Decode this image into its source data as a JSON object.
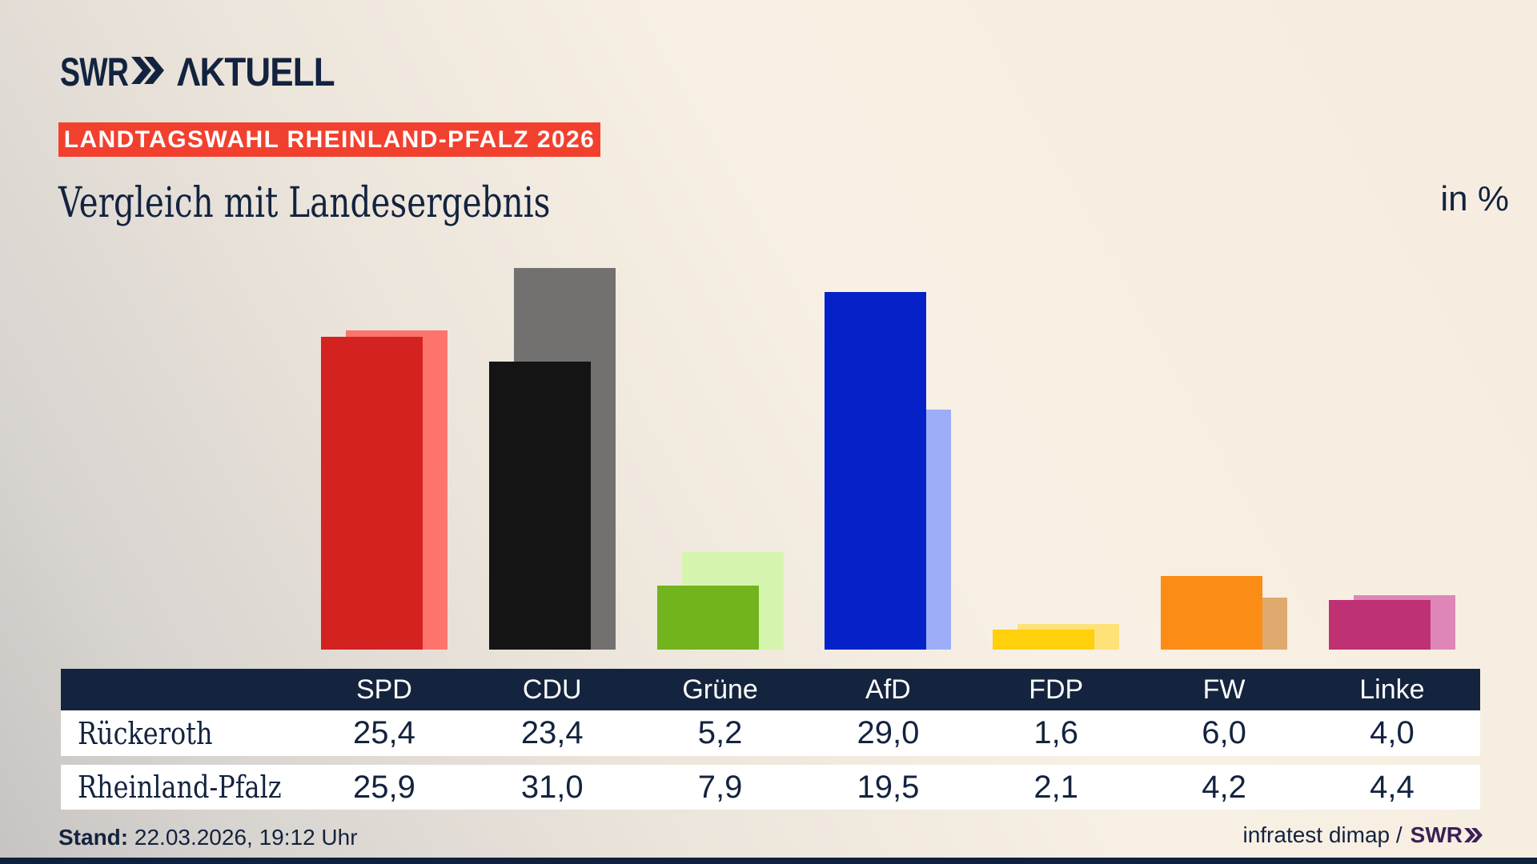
{
  "brand": {
    "logo_swr": "SWR",
    "logo_aktuell": "ΛKTUELL"
  },
  "badge": "LANDTAGSWAHL RHEINLAND-PFALZ 2026",
  "title": "Vergleich mit Landesergebnis",
  "unit_label": "in %",
  "chart_data": {
    "type": "bar",
    "categories": [
      "SPD",
      "CDU",
      "Grüne",
      "AfD",
      "FDP",
      "FW",
      "Linke"
    ],
    "series": [
      {
        "name": "Rückeroth",
        "values": [
          25.4,
          23.4,
          5.2,
          29.0,
          1.6,
          6.0,
          4.0
        ]
      },
      {
        "name": "Rheinland-Pfalz",
        "values": [
          25.9,
          31.0,
          7.9,
          19.5,
          2.1,
          4.2,
          4.4
        ]
      }
    ],
    "title": "Vergleich mit Landesergebnis",
    "unit": "in %",
    "ylim": [
      0,
      31.5
    ],
    "colors_front": [
      "#d42221",
      "#141414",
      "#72b41e",
      "#0522c8",
      "#ffd00c",
      "#fb8c16",
      "#be3173"
    ],
    "colors_back": [
      "#fc746c",
      "#737070",
      "#d5f5af",
      "#9dadf8",
      "#fee278",
      "#dfaa6d",
      "#de87b7"
    ],
    "legend": "front bar = Rückeroth, offset back bar = Rheinland-Pfalz"
  },
  "table": {
    "headers": [
      "SPD",
      "CDU",
      "Grüne",
      "AfD",
      "FDP",
      "FW",
      "Linke"
    ],
    "rows": [
      {
        "label": "Rückeroth",
        "values": [
          "25,4",
          "23,4",
          "5,2",
          "29,0",
          "1,6",
          "6,0",
          "4,0"
        ]
      },
      {
        "label": "Rheinland-Pfalz",
        "values": [
          "25,9",
          "31,0",
          "7,9",
          "19,5",
          "2,1",
          "4,2",
          "4,4"
        ]
      }
    ]
  },
  "footer": {
    "stand_label": "Stand:",
    "stand_value": " 22.03.2026, 19:12 Uhr",
    "credit": "infratest dimap /",
    "credit_logo": "SWR"
  },
  "colors": {
    "navy": "#13233f",
    "badge_red": "#f2402f",
    "background_cream": "#f8f0e4",
    "background_gray": "#c6c3c1",
    "credit_purple": "#3b2057",
    "table_header": "#14243e"
  }
}
